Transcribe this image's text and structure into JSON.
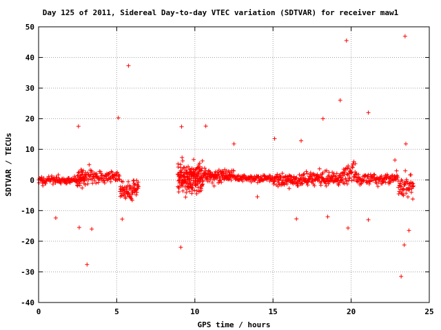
{
  "chart_data": {
    "type": "scatter",
    "title": "Day 125 of 2011, Sidereal Day-to-day VTEC variation (SDTVAR) for receiver maw1",
    "xlabel": "GPS time / hours",
    "ylabel": "SDTVAR / TECUs",
    "xlim": [
      0,
      25
    ],
    "ylim": [
      -40,
      50
    ],
    "xticks": [
      0,
      5,
      10,
      15,
      20,
      25
    ],
    "yticks": [
      -40,
      -30,
      -20,
      -10,
      0,
      10,
      20,
      30,
      40,
      50
    ],
    "grid": true,
    "marker": "+",
    "series": [
      {
        "name": "maw1",
        "color": "#ff0000",
        "segments": [
          {
            "x0": 0.0,
            "x1": 3.0,
            "center": 0.0,
            "spread": 1.5,
            "density": 40
          },
          {
            "x0": 2.4,
            "x1": 3.6,
            "center": 1.0,
            "spread": 4.0,
            "density": 40
          },
          {
            "x0": 3.6,
            "x1": 5.2,
            "center": 1.0,
            "spread": 2.0,
            "density": 40
          },
          {
            "x0": 5.2,
            "x1": 6.4,
            "center": -3.0,
            "spread": 3.5,
            "density": 60
          },
          {
            "x0": 8.9,
            "x1": 10.5,
            "center": 0.5,
            "spread": 5.5,
            "density": 120
          },
          {
            "x0": 10.5,
            "x1": 12.5,
            "center": 1.5,
            "spread": 2.2,
            "density": 60
          },
          {
            "x0": 12.5,
            "x1": 15.0,
            "center": 0.5,
            "spread": 1.2,
            "density": 40
          },
          {
            "x0": 15.0,
            "x1": 17.0,
            "center": 0.0,
            "spread": 2.5,
            "density": 50
          },
          {
            "x0": 17.0,
            "x1": 19.5,
            "center": 0.5,
            "spread": 2.5,
            "density": 50
          },
          {
            "x0": 19.5,
            "x1": 20.3,
            "center": 3.0,
            "spread": 5.0,
            "density": 50
          },
          {
            "x0": 20.3,
            "x1": 23.0,
            "center": 0.5,
            "spread": 2.0,
            "density": 40
          },
          {
            "x0": 23.0,
            "x1": 24.0,
            "center": -2.0,
            "spread": 4.5,
            "density": 50
          }
        ],
        "outliers": [
          {
            "x": 5.75,
            "y": 37.3
          },
          {
            "x": 5.1,
            "y": 20.3
          },
          {
            "x": 2.55,
            "y": 17.5
          },
          {
            "x": 3.1,
            "y": -27.6
          },
          {
            "x": 3.4,
            "y": -16.0
          },
          {
            "x": 2.6,
            "y": -15.5
          },
          {
            "x": 1.1,
            "y": -12.4
          },
          {
            "x": 5.35,
            "y": -12.8
          },
          {
            "x": 9.15,
            "y": 17.4
          },
          {
            "x": 9.1,
            "y": -22.0
          },
          {
            "x": 10.7,
            "y": 17.6
          },
          {
            "x": 12.5,
            "y": 11.8
          },
          {
            "x": 14.0,
            "y": -5.5
          },
          {
            "x": 15.1,
            "y": 13.5
          },
          {
            "x": 16.5,
            "y": -12.7
          },
          {
            "x": 18.2,
            "y": 20.0
          },
          {
            "x": 19.3,
            "y": 26.0
          },
          {
            "x": 19.7,
            "y": 45.5
          },
          {
            "x": 19.8,
            "y": -15.7
          },
          {
            "x": 21.1,
            "y": 22.0
          },
          {
            "x": 21.1,
            "y": -13.0
          },
          {
            "x": 23.45,
            "y": 46.9
          },
          {
            "x": 23.2,
            "y": -31.5
          },
          {
            "x": 23.4,
            "y": -21.2
          },
          {
            "x": 23.7,
            "y": -16.5
          },
          {
            "x": 23.5,
            "y": 11.8
          },
          {
            "x": 22.8,
            "y": 6.5
          },
          {
            "x": 18.5,
            "y": -12.0
          },
          {
            "x": 16.8,
            "y": 12.8
          }
        ]
      }
    ]
  }
}
